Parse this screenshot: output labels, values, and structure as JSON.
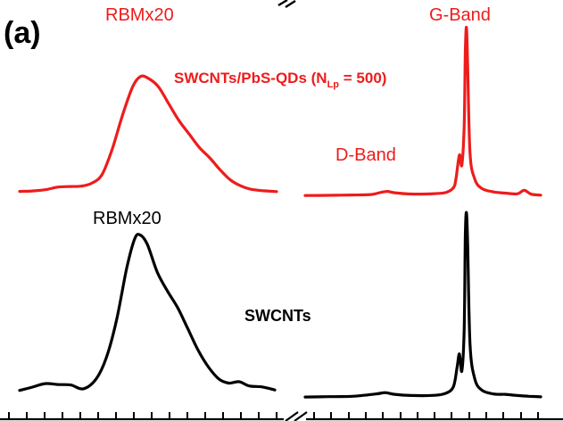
{
  "figure": {
    "panel_label": "(a)",
    "colors": {
      "red": "#ee1c1c",
      "black": "#000000",
      "background": "#ffffff"
    }
  },
  "chart_data": {
    "type": "line",
    "x_axis": "unlabeled Raman shift axis with a break between the RBM region and the D/G-band region",
    "series": [
      {
        "name": "SWCNTs/PbS-QDs (NLp = 500)",
        "legend_main": "SWCNTs/PbS-QDs (N",
        "legend_sub": "Lp",
        "legend_tail": " = 500)",
        "color": "#ee1c1c",
        "rbm_label": "RBMx20",
        "rbm_profile": [
          [
            0,
            0.2
          ],
          [
            0.05,
            0.5
          ],
          [
            0.1,
            1.2
          ],
          [
            0.15,
            2.8
          ],
          [
            0.2,
            3.1
          ],
          [
            0.24,
            3.3
          ],
          [
            0.28,
            5
          ],
          [
            0.32,
            10
          ],
          [
            0.36,
            25
          ],
          [
            0.4,
            45
          ],
          [
            0.44,
            62
          ],
          [
            0.47,
            68
          ],
          [
            0.5,
            67
          ],
          [
            0.54,
            62
          ],
          [
            0.58,
            52
          ],
          [
            0.62,
            42
          ],
          [
            0.66,
            34
          ],
          [
            0.7,
            26
          ],
          [
            0.74,
            20
          ],
          [
            0.78,
            13
          ],
          [
            0.82,
            7
          ],
          [
            0.86,
            3.5
          ],
          [
            0.9,
            1.5
          ],
          [
            0.95,
            0.6
          ],
          [
            1,
            0.1
          ]
        ],
        "band_profile": [
          [
            0,
            0.4
          ],
          [
            0.1,
            0.5
          ],
          [
            0.2,
            0.7
          ],
          [
            0.28,
            1.0
          ],
          [
            0.32,
            2.2
          ],
          [
            0.35,
            2.8
          ],
          [
            0.38,
            2.0
          ],
          [
            0.45,
            1.3
          ],
          [
            0.55,
            1.5
          ],
          [
            0.6,
            2.3
          ],
          [
            0.63,
            5
          ],
          [
            0.64,
            10
          ],
          [
            0.655,
            24
          ],
          [
            0.665,
            18
          ],
          [
            0.675,
            40
          ],
          [
            0.68,
            84
          ],
          [
            0.685,
            98
          ],
          [
            0.69,
            75
          ],
          [
            0.7,
            25
          ],
          [
            0.72,
            10
          ],
          [
            0.75,
            4.5
          ],
          [
            0.8,
            2.5
          ],
          [
            0.85,
            1.8
          ],
          [
            0.9,
            1.4
          ],
          [
            0.93,
            3.4
          ],
          [
            0.96,
            1.2
          ],
          [
            1,
            0.6
          ]
        ],
        "band_labels": [
          "D-Band",
          "G-Band"
        ]
      },
      {
        "name": "SWCNTs",
        "legend_main": "SWCNTs",
        "color": "#000000",
        "rbm_label": "RBMx20",
        "rbm_profile": [
          [
            0,
            0.1
          ],
          [
            0.05,
            1.5
          ],
          [
            0.1,
            3.0
          ],
          [
            0.15,
            2.6
          ],
          [
            0.2,
            2.4
          ],
          [
            0.25,
            0.8
          ],
          [
            0.3,
            5
          ],
          [
            0.34,
            14
          ],
          [
            0.38,
            30
          ],
          [
            0.42,
            52
          ],
          [
            0.45,
            64
          ],
          [
            0.47,
            66
          ],
          [
            0.5,
            62
          ],
          [
            0.54,
            50
          ],
          [
            0.58,
            42
          ],
          [
            0.62,
            35
          ],
          [
            0.66,
            26
          ],
          [
            0.7,
            17
          ],
          [
            0.74,
            10
          ],
          [
            0.78,
            5
          ],
          [
            0.82,
            3.2
          ],
          [
            0.86,
            3.8
          ],
          [
            0.9,
            2.0
          ],
          [
            0.95,
            1.6
          ],
          [
            1,
            0.3
          ]
        ],
        "band_profile": [
          [
            0,
            0.4
          ],
          [
            0.1,
            0.6
          ],
          [
            0.2,
            0.8
          ],
          [
            0.3,
            2.0
          ],
          [
            0.34,
            2.7
          ],
          [
            0.38,
            1.8
          ],
          [
            0.45,
            1.2
          ],
          [
            0.55,
            1.3
          ],
          [
            0.6,
            2.5
          ],
          [
            0.63,
            6
          ],
          [
            0.645,
            16
          ],
          [
            0.655,
            23
          ],
          [
            0.665,
            14
          ],
          [
            0.675,
            35
          ],
          [
            0.68,
            85
          ],
          [
            0.685,
            97
          ],
          [
            0.69,
            80
          ],
          [
            0.7,
            28
          ],
          [
            0.72,
            10
          ],
          [
            0.75,
            4
          ],
          [
            0.8,
            2
          ],
          [
            0.85,
            1.8
          ],
          [
            0.9,
            1.2
          ],
          [
            0.95,
            0.8
          ],
          [
            1,
            0.5
          ]
        ]
      }
    ],
    "grid": false,
    "legend": "inline text labels"
  }
}
